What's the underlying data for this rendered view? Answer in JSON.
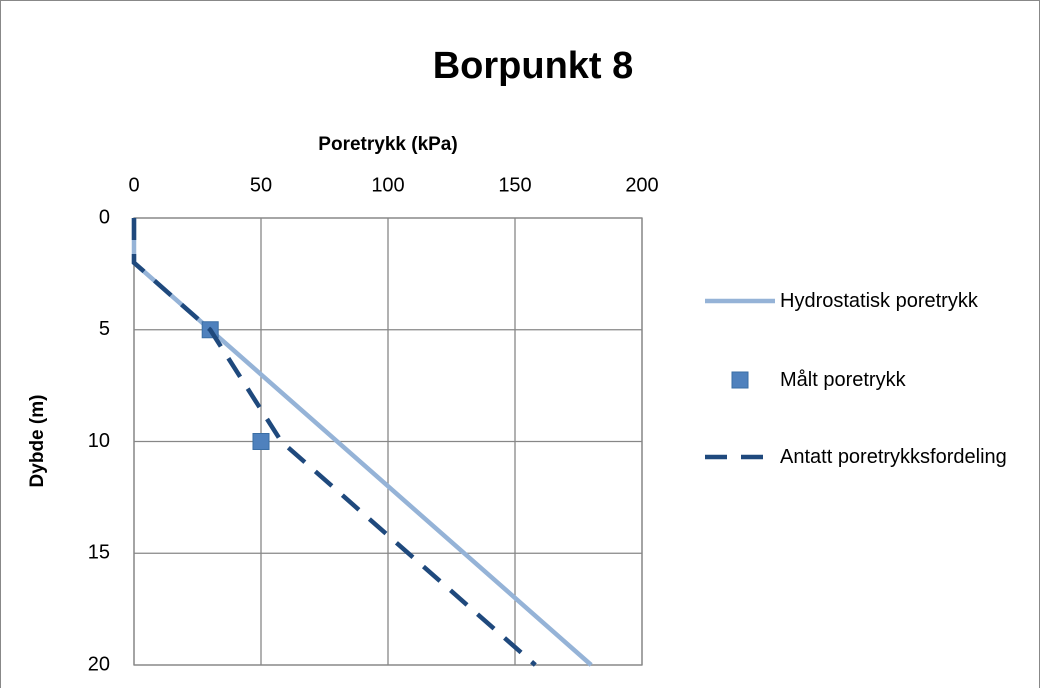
{
  "chart_data": {
    "type": "line",
    "title": "Borpunkt 8",
    "x_label": "Poretrykk (kPa)",
    "y_label": "Dybde (m)",
    "xlim": [
      0,
      200
    ],
    "xticks": [
      0,
      50,
      100,
      150,
      200
    ],
    "ylim": [
      0,
      20
    ],
    "yticks": [
      0,
      5,
      10,
      15,
      20
    ],
    "y_inverted": true,
    "x_axis_position": "top",
    "grid": true,
    "legend": "right",
    "series": [
      {
        "name": "Hydrostatisk poretrykk",
        "color": "#95b3d7",
        "style": "solid",
        "marker": "none",
        "x": [
          0,
          0,
          180
        ],
        "values": [
          0,
          2,
          20
        ]
      },
      {
        "name": "Målt poretrykk",
        "color": "#4f81bd",
        "style": "none",
        "marker": "square",
        "x": [
          30,
          50
        ],
        "values": [
          5,
          10
        ]
      },
      {
        "name": "Antatt poretrykksfordeling",
        "color": "#1f497d",
        "style": "dashed",
        "marker": "none",
        "x": [
          0,
          0,
          30,
          58,
          158
        ],
        "values": [
          0,
          2,
          5,
          10,
          20
        ]
      }
    ]
  }
}
